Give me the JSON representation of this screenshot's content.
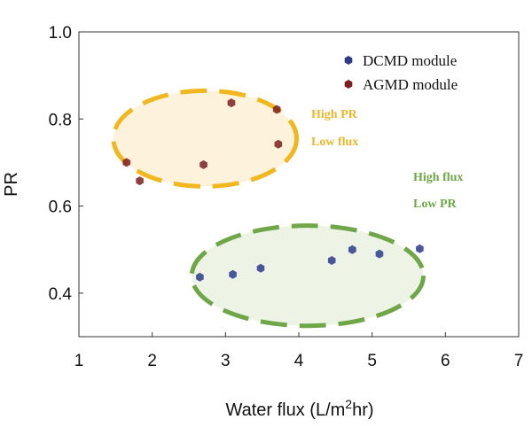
{
  "chart_data": {
    "type": "scatter",
    "xlabel": "Water flux (L/m",
    "xlabel_sup": "2",
    "xlabel_suffix": "hr)",
    "ylabel": "PR",
    "xlim": [
      1,
      7
    ],
    "ylim": [
      0.3,
      1.0
    ],
    "x_ticks": [
      "1",
      "2",
      "3",
      "4",
      "5",
      "6",
      "7"
    ],
    "y_ticks": [
      "0.4",
      "0.6",
      "0.8",
      "1.0"
    ],
    "grid": false,
    "legend_position": "top-right",
    "series": [
      {
        "name": "DCMD module",
        "color": "#2e3a8c",
        "x": [
          2.65,
          3.1,
          3.48,
          4.45,
          4.73,
          5.1,
          5.65
        ],
        "y": [
          0.437,
          0.443,
          0.457,
          0.475,
          0.5,
          0.49,
          0.502
        ]
      },
      {
        "name": "AGMD module",
        "color": "#7a1f1f",
        "x": [
          1.65,
          1.83,
          2.7,
          3.08,
          3.7,
          3.72
        ],
        "y": [
          0.7,
          0.658,
          0.695,
          0.837,
          0.822,
          0.742
        ]
      }
    ],
    "annotations": [
      {
        "lines": [
          "High  PR",
          "Low  flux"
        ],
        "color": "#e8b72c",
        "region": {
          "cx": 2.72,
          "cy": 0.755,
          "rx": 1.25,
          "ry": 0.11,
          "fill": "#fdf3dc",
          "stroke": "#f0b81e"
        }
      },
      {
        "lines": [
          "High  flux",
          "Low  PR"
        ],
        "color": "#6fa648",
        "region": {
          "cx": 4.12,
          "cy": 0.44,
          "rx": 1.58,
          "ry": 0.115,
          "fill": "#edf4e6",
          "stroke": "#6fa648"
        }
      }
    ]
  }
}
